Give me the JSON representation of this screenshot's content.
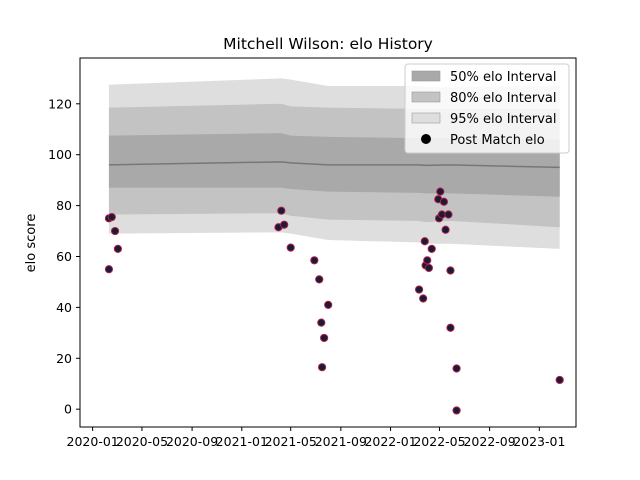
{
  "chart_data": {
    "type": "scatter",
    "title": "Mitchell Wilson: elo History",
    "xlabel": "",
    "ylabel": "elo score",
    "xlim": [
      "2019-12-01",
      "2023-04-01"
    ],
    "ylim": [
      -7,
      138
    ],
    "x_ticks": [
      "2020-01",
      "2020-05",
      "2020-09",
      "2021-01",
      "2021-05",
      "2021-09",
      "2022-01",
      "2022-05",
      "2022-09",
      "2023-01"
    ],
    "y_ticks": [
      0,
      20,
      40,
      60,
      80,
      100,
      120
    ],
    "grid": false,
    "legend_position": "upper right",
    "legend": [
      {
        "label": "50% elo Interval",
        "color": "#a9a9a9"
      },
      {
        "label": "80% elo Interval",
        "color": "#c3c3c3"
      },
      {
        "label": "95% elo Interval",
        "color": "#dedede"
      },
      {
        "label": "Post Match elo",
        "color": "#000000"
      }
    ],
    "series": [
      {
        "name": "Post Match elo",
        "marker_fill": "#1a1a3a",
        "marker_edge": "#b02040",
        "points": [
          {
            "x": "2020-02-10",
            "y": 55
          },
          {
            "x": "2020-02-10",
            "y": 75
          },
          {
            "x": "2020-02-17",
            "y": 75.5
          },
          {
            "x": "2020-02-25",
            "y": 70
          },
          {
            "x": "2020-03-03",
            "y": 63
          },
          {
            "x": "2021-04-01",
            "y": 71.5
          },
          {
            "x": "2021-04-08",
            "y": 78
          },
          {
            "x": "2021-04-15",
            "y": 72.5
          },
          {
            "x": "2021-05-01",
            "y": 63.5
          },
          {
            "x": "2021-06-28",
            "y": 58.5
          },
          {
            "x": "2021-07-10",
            "y": 51
          },
          {
            "x": "2021-07-15",
            "y": 34
          },
          {
            "x": "2021-07-17",
            "y": 16.5
          },
          {
            "x": "2021-07-22",
            "y": 28
          },
          {
            "x": "2021-08-01",
            "y": 41
          },
          {
            "x": "2022-03-12",
            "y": 47
          },
          {
            "x": "2022-03-22",
            "y": 43.5
          },
          {
            "x": "2022-03-26",
            "y": 66
          },
          {
            "x": "2022-03-28",
            "y": 56.5
          },
          {
            "x": "2022-04-01",
            "y": 58.5
          },
          {
            "x": "2022-04-05",
            "y": 55.5
          },
          {
            "x": "2022-04-12",
            "y": 63
          },
          {
            "x": "2022-04-28",
            "y": 82.5
          },
          {
            "x": "2022-04-30",
            "y": 75
          },
          {
            "x": "2022-05-03",
            "y": 85.5
          },
          {
            "x": "2022-05-07",
            "y": 76.5
          },
          {
            "x": "2022-05-12",
            "y": 81.5
          },
          {
            "x": "2022-05-16",
            "y": 70.5
          },
          {
            "x": "2022-05-23",
            "y": 76.5
          },
          {
            "x": "2022-05-28",
            "y": 54.5
          },
          {
            "x": "2022-05-28",
            "y": 32
          },
          {
            "x": "2022-06-12",
            "y": 16
          },
          {
            "x": "2022-06-12",
            "y": -0.5
          },
          {
            "x": "2023-02-20",
            "y": 11.5
          }
        ]
      }
    ],
    "bands": {
      "x": [
        "2020-02-10",
        "2021-04-08",
        "2021-05-01",
        "2021-08-01",
        "2022-03-12",
        "2022-03-28",
        "2022-05-28",
        "2023-02-20"
      ],
      "mean": [
        96,
        97.2,
        96.8,
        96,
        96,
        95.8,
        96,
        95
      ],
      "p50_low": [
        87,
        87,
        86.5,
        85.5,
        85,
        84.8,
        84.8,
        83.5
      ],
      "p50_high": [
        107.5,
        108.5,
        107.5,
        107,
        106.5,
        106.5,
        106.5,
        106
      ],
      "p80_low": [
        76.5,
        77,
        76,
        74.5,
        74,
        73.5,
        74,
        71.5
      ],
      "p80_high": [
        118.5,
        120,
        119,
        118.5,
        118,
        118,
        118,
        118
      ],
      "p95_low": [
        69,
        69.5,
        69,
        66.5,
        65.5,
        65,
        65,
        63
      ],
      "p95_high": [
        127.5,
        130,
        129.5,
        127,
        127,
        126.5,
        126.5,
        127
      ]
    }
  }
}
